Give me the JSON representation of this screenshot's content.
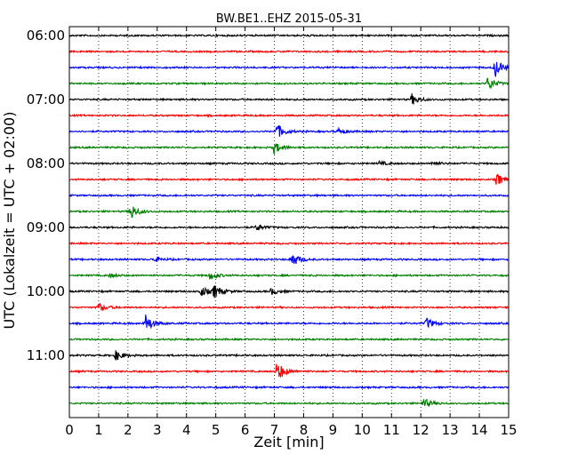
{
  "chart_data": {
    "type": "line",
    "title": "BW.BE1..EHZ 2015-05-31",
    "xlabel": "Zeit  [min]",
    "ylabel": "UTC (Lokalzeit = UTC + 02:00)",
    "xlim": [
      0,
      15
    ],
    "x_ticks": [
      "0",
      "1",
      "2",
      "3",
      "4",
      "5",
      "6",
      "7",
      "8",
      "9",
      "10",
      "11",
      "12",
      "13",
      "14",
      "15"
    ],
    "y_ticks": [
      "06:00",
      "07:00",
      "08:00",
      "09:00",
      "10:00",
      "11:00"
    ],
    "grid": "vertical dotted",
    "colors": [
      "#000000",
      "#ff0000",
      "#0000ff",
      "#008000"
    ],
    "series": [
      {
        "start": "06:00",
        "color": "#000000",
        "events": []
      },
      {
        "start": "06:15",
        "color": "#ff0000",
        "events": []
      },
      {
        "start": "06:30",
        "color": "#0000ff",
        "events": [
          {
            "t": 14.55,
            "amp": 1.0
          }
        ]
      },
      {
        "start": "06:45",
        "color": "#008000",
        "events": [
          {
            "t": 14.3,
            "amp": 0.75
          }
        ]
      },
      {
        "start": "07:00",
        "color": "#000000",
        "events": [
          {
            "t": 11.7,
            "amp": 0.6
          }
        ]
      },
      {
        "start": "07:15",
        "color": "#ff0000",
        "events": []
      },
      {
        "start": "07:30",
        "color": "#0000ff",
        "events": [
          {
            "t": 7.1,
            "amp": 0.8
          },
          {
            "t": 9.2,
            "amp": 0.3
          }
        ]
      },
      {
        "start": "07:45",
        "color": "#008000",
        "events": [
          {
            "t": 7.0,
            "amp": 0.65
          }
        ]
      },
      {
        "start": "08:00",
        "color": "#000000",
        "events": [
          {
            "t": 10.6,
            "amp": 0.2
          },
          {
            "t": 12.4,
            "amp": 0.2
          }
        ]
      },
      {
        "start": "08:15",
        "color": "#ff0000",
        "events": [
          {
            "t": 14.6,
            "amp": 0.65
          }
        ]
      },
      {
        "start": "08:30",
        "color": "#0000ff",
        "events": []
      },
      {
        "start": "08:45",
        "color": "#008000",
        "events": [
          {
            "t": 2.1,
            "amp": 0.9
          }
        ]
      },
      {
        "start": "09:00",
        "color": "#000000",
        "events": [
          {
            "t": 6.4,
            "amp": 0.35
          }
        ]
      },
      {
        "start": "09:15",
        "color": "#ff0000",
        "events": []
      },
      {
        "start": "09:30",
        "color": "#0000ff",
        "events": [
          {
            "t": 2.9,
            "amp": 0.3
          },
          {
            "t": 7.6,
            "amp": 0.8
          }
        ]
      },
      {
        "start": "09:45",
        "color": "#008000",
        "events": [
          {
            "t": 1.4,
            "amp": 0.2
          },
          {
            "t": 4.8,
            "amp": 0.45
          }
        ]
      },
      {
        "start": "10:00",
        "color": "#000000",
        "events": [
          {
            "t": 4.5,
            "amp": 0.55
          },
          {
            "t": 4.95,
            "amp": 0.7
          },
          {
            "t": 6.9,
            "amp": 0.35
          }
        ]
      },
      {
        "start": "10:15",
        "color": "#ff0000",
        "events": [
          {
            "t": 1.0,
            "amp": 0.5
          }
        ]
      },
      {
        "start": "10:30",
        "color": "#0000ff",
        "events": [
          {
            "t": 2.6,
            "amp": 1.05
          },
          {
            "t": 12.2,
            "amp": 0.6
          }
        ]
      },
      {
        "start": "10:45",
        "color": "#008000",
        "events": []
      },
      {
        "start": "11:00",
        "color": "#000000",
        "events": [
          {
            "t": 1.6,
            "amp": 0.55
          }
        ]
      },
      {
        "start": "11:15",
        "color": "#ff0000",
        "events": [
          {
            "t": 7.1,
            "amp": 1.15
          }
        ]
      },
      {
        "start": "11:30",
        "color": "#0000ff",
        "events": []
      },
      {
        "start": "11:45",
        "color": "#008000",
        "events": [
          {
            "t": 12.1,
            "amp": 0.55
          }
        ]
      }
    ]
  }
}
